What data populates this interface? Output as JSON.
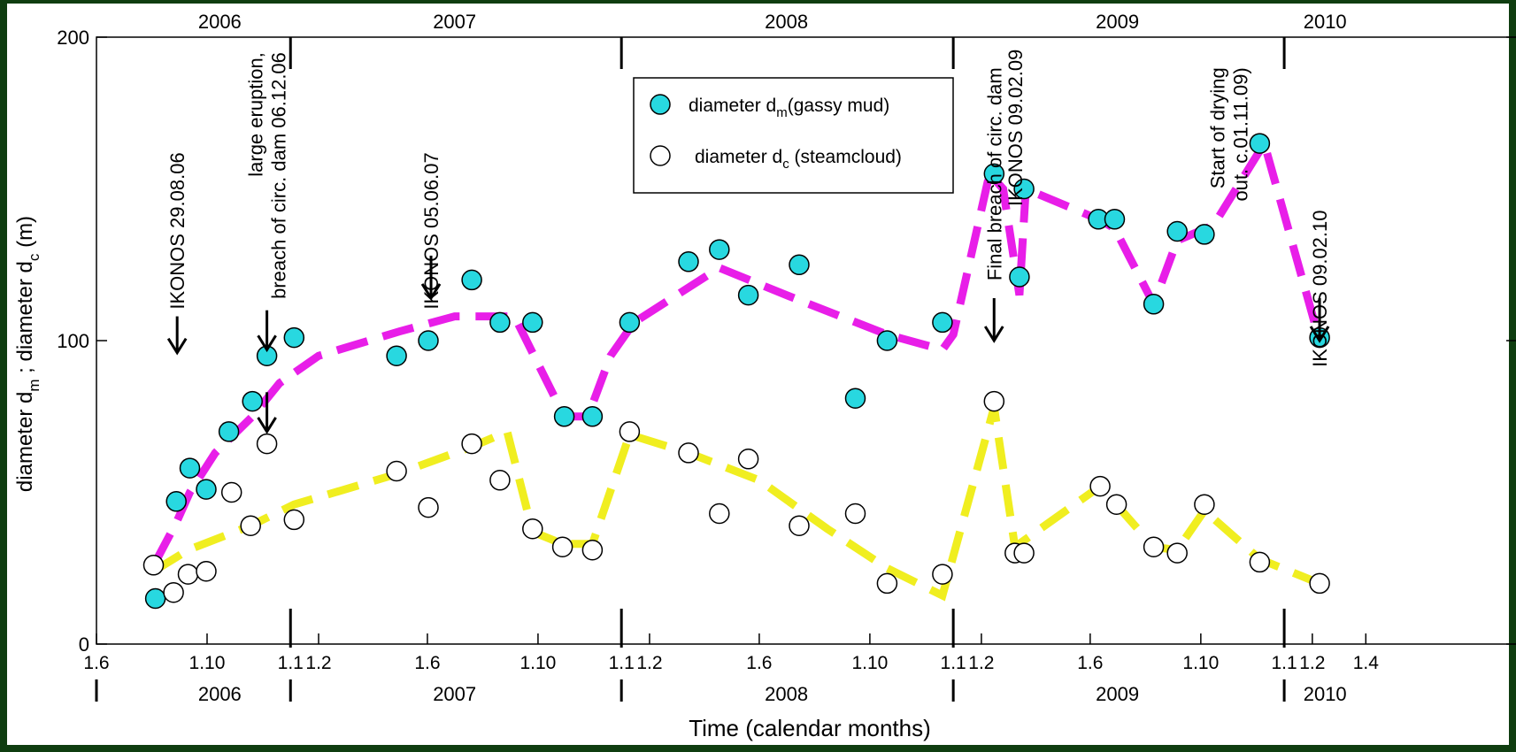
{
  "chart_data": {
    "type": "scatter",
    "xlabel": "Time (calendar months)",
    "ylabel_parts": [
      "diameter d",
      "m",
      " ; diameter d",
      "c",
      " (m)"
    ],
    "ylim": [
      0,
      200
    ],
    "y_ticks": [
      {
        "value": 0,
        "label": "0"
      },
      {
        "value": 100,
        "label": "100"
      },
      {
        "value": 200,
        "label": "200"
      }
    ],
    "x_ticks": [
      {
        "date": "2006-06-01",
        "label": "1.6"
      },
      {
        "date": "2006-10-01",
        "label": "1.10"
      },
      {
        "date": "2007-01-01",
        "label": "1.1"
      },
      {
        "date": "2007-02-01",
        "label": "1.2"
      },
      {
        "date": "2007-06-01",
        "label": "1.6"
      },
      {
        "date": "2007-10-01",
        "label": "1.10"
      },
      {
        "date": "2008-01-01",
        "label": "1.1"
      },
      {
        "date": "2008-02-01",
        "label": "1.2"
      },
      {
        "date": "2008-06-01",
        "label": "1.6"
      },
      {
        "date": "2008-10-01",
        "label": "1.10"
      },
      {
        "date": "2009-01-01",
        "label": "1.1"
      },
      {
        "date": "2009-02-01",
        "label": "1.2"
      },
      {
        "date": "2009-06-01",
        "label": "1.6"
      },
      {
        "date": "2009-10-01",
        "label": "1.10"
      },
      {
        "date": "2010-01-01",
        "label": "1.1"
      },
      {
        "date": "2010-02-01",
        "label": "1.2"
      },
      {
        "date": "2010-04-01",
        "label": "1.4"
      }
    ],
    "year_boundaries": [
      "2007-01-01",
      "2008-01-01",
      "2009-01-01",
      "2010-01-01"
    ],
    "year_labels": [
      {
        "date": "2006-10-15",
        "label": "2006"
      },
      {
        "date": "2007-07-01",
        "label": "2007"
      },
      {
        "date": "2008-07-01",
        "label": "2008"
      },
      {
        "date": "2009-07-01",
        "label": "2009"
      },
      {
        "date": "2010-02-15",
        "label": "2010"
      }
    ],
    "legend": {
      "position": "top-center",
      "entries": [
        {
          "key": "mud",
          "name_main": "diameter d",
          "name_sub": "m",
          "name_rest": "(gassy mud)",
          "marker": "filled",
          "color": "#28d8e0"
        },
        {
          "key": "steam",
          "name_main": "diameter d",
          "name_sub": "c",
          "name_rest": " (steamcloud)",
          "marker": "open",
          "color": "#ffffff"
        }
      ]
    },
    "series": [
      {
        "key": "mud",
        "color": "#28d8e0",
        "points": [
          {
            "x": "2006-08-05",
            "y": 15
          },
          {
            "x": "2006-08-28",
            "y": 47
          },
          {
            "x": "2006-09-12",
            "y": 58
          },
          {
            "x": "2006-09-30",
            "y": 51
          },
          {
            "x": "2006-10-25",
            "y": 70
          },
          {
            "x": "2006-11-20",
            "y": 80
          },
          {
            "x": "2006-12-06",
            "y": 95
          },
          {
            "x": "2007-01-05",
            "y": 101
          },
          {
            "x": "2007-04-28",
            "y": 95
          },
          {
            "x": "2007-06-02",
            "y": 100
          },
          {
            "x": "2007-07-20",
            "y": 120
          },
          {
            "x": "2007-08-20",
            "y": 106
          },
          {
            "x": "2007-09-25",
            "y": 106
          },
          {
            "x": "2007-10-30",
            "y": 75
          },
          {
            "x": "2007-11-30",
            "y": 75
          },
          {
            "x": "2008-01-10",
            "y": 106
          },
          {
            "x": "2008-03-15",
            "y": 126
          },
          {
            "x": "2008-04-18",
            "y": 130
          },
          {
            "x": "2008-05-20",
            "y": 115
          },
          {
            "x": "2008-07-15",
            "y": 125
          },
          {
            "x": "2008-09-15",
            "y": 81
          },
          {
            "x": "2008-10-20",
            "y": 100
          },
          {
            "x": "2008-12-20",
            "y": 106
          },
          {
            "x": "2009-02-15",
            "y": 155
          },
          {
            "x": "2009-03-15",
            "y": 121
          },
          {
            "x": "2009-03-20",
            "y": 150
          },
          {
            "x": "2009-06-10",
            "y": 140
          },
          {
            "x": "2009-06-28",
            "y": 140
          },
          {
            "x": "2009-08-10",
            "y": 112
          },
          {
            "x": "2009-09-05",
            "y": 136
          },
          {
            "x": "2009-10-05",
            "y": 135
          },
          {
            "x": "2009-12-05",
            "y": 165
          },
          {
            "x": "2010-02-09",
            "y": 101
          }
        ]
      },
      {
        "key": "steam",
        "color": "#ffffff",
        "points": [
          {
            "x": "2006-08-03",
            "y": 26
          },
          {
            "x": "2006-08-25",
            "y": 17
          },
          {
            "x": "2006-09-10",
            "y": 23
          },
          {
            "x": "2006-09-30",
            "y": 24
          },
          {
            "x": "2006-10-28",
            "y": 50
          },
          {
            "x": "2006-11-18",
            "y": 39
          },
          {
            "x": "2006-12-06",
            "y": 66
          },
          {
            "x": "2007-01-05",
            "y": 41
          },
          {
            "x": "2007-04-28",
            "y": 57
          },
          {
            "x": "2007-06-02",
            "y": 45
          },
          {
            "x": "2007-07-20",
            "y": 66
          },
          {
            "x": "2007-08-20",
            "y": 54
          },
          {
            "x": "2007-09-25",
            "y": 38
          },
          {
            "x": "2007-10-28",
            "y": 32
          },
          {
            "x": "2007-11-30",
            "y": 31
          },
          {
            "x": "2008-01-10",
            "y": 70
          },
          {
            "x": "2008-03-15",
            "y": 63
          },
          {
            "x": "2008-04-18",
            "y": 43
          },
          {
            "x": "2008-05-20",
            "y": 61
          },
          {
            "x": "2008-07-15",
            "y": 39
          },
          {
            "x": "2008-09-15",
            "y": 43
          },
          {
            "x": "2008-10-20",
            "y": 20
          },
          {
            "x": "2008-12-20",
            "y": 23
          },
          {
            "x": "2009-02-15",
            "y": 80
          },
          {
            "x": "2009-03-10",
            "y": 30
          },
          {
            "x": "2009-03-20",
            "y": 30
          },
          {
            "x": "2009-06-12",
            "y": 52
          },
          {
            "x": "2009-06-30",
            "y": 46
          },
          {
            "x": "2009-08-10",
            "y": 32
          },
          {
            "x": "2009-09-05",
            "y": 30
          },
          {
            "x": "2009-10-05",
            "y": 46
          },
          {
            "x": "2009-12-05",
            "y": 27
          },
          {
            "x": "2010-02-09",
            "y": 20
          }
        ]
      }
    ],
    "trend_lines": [
      {
        "key": "mud-trend",
        "color": "#e81ee8",
        "points": [
          {
            "x": "2006-08-05",
            "y": 27
          },
          {
            "x": "2006-08-28",
            "y": 40
          },
          {
            "x": "2006-09-12",
            "y": 50
          },
          {
            "x": "2006-10-10",
            "y": 63
          },
          {
            "x": "2006-11-20",
            "y": 75
          },
          {
            "x": "2006-12-20",
            "y": 86
          },
          {
            "x": "2007-02-01",
            "y": 95
          },
          {
            "x": "2007-05-01",
            "y": 103
          },
          {
            "x": "2007-07-01",
            "y": 108
          },
          {
            "x": "2007-08-15",
            "y": 108
          },
          {
            "x": "2007-09-05",
            "y": 108
          },
          {
            "x": "2007-10-30",
            "y": 75
          },
          {
            "x": "2007-11-25",
            "y": 75
          },
          {
            "x": "2007-12-20",
            "y": 95
          },
          {
            "x": "2008-01-15",
            "y": 106
          },
          {
            "x": "2008-04-18",
            "y": 124
          },
          {
            "x": "2008-07-01",
            "y": 115
          },
          {
            "x": "2008-10-20",
            "y": 102
          },
          {
            "x": "2008-12-20",
            "y": 97
          },
          {
            "x": "2009-01-01",
            "y": 102
          },
          {
            "x": "2009-02-10",
            "y": 155
          },
          {
            "x": "2009-02-25",
            "y": 150
          },
          {
            "x": "2009-03-15",
            "y": 115
          },
          {
            "x": "2009-03-22",
            "y": 150
          },
          {
            "x": "2009-06-10",
            "y": 140
          },
          {
            "x": "2009-06-28",
            "y": 137
          },
          {
            "x": "2009-08-10",
            "y": 112
          },
          {
            "x": "2009-09-05",
            "y": 133
          },
          {
            "x": "2009-10-15",
            "y": 138
          },
          {
            "x": "2009-12-10",
            "y": 165
          },
          {
            "x": "2010-02-09",
            "y": 100
          }
        ]
      },
      {
        "key": "steam-trend",
        "color": "#f0ee20",
        "points": [
          {
            "x": "2006-08-03",
            "y": 24
          },
          {
            "x": "2006-09-10",
            "y": 31
          },
          {
            "x": "2006-11-18",
            "y": 39
          },
          {
            "x": "2007-01-05",
            "y": 46
          },
          {
            "x": "2007-04-28",
            "y": 56
          },
          {
            "x": "2007-07-20",
            "y": 65
          },
          {
            "x": "2007-08-28",
            "y": 70
          },
          {
            "x": "2007-09-25",
            "y": 37
          },
          {
            "x": "2007-10-28",
            "y": 33
          },
          {
            "x": "2007-11-30",
            "y": 33
          },
          {
            "x": "2008-01-10",
            "y": 69
          },
          {
            "x": "2008-03-15",
            "y": 63
          },
          {
            "x": "2008-06-01",
            "y": 54
          },
          {
            "x": "2008-08-15",
            "y": 38
          },
          {
            "x": "2008-10-20",
            "y": 25
          },
          {
            "x": "2008-12-20",
            "y": 16
          },
          {
            "x": "2009-02-15",
            "y": 78
          },
          {
            "x": "2009-03-10",
            "y": 32
          },
          {
            "x": "2009-06-12",
            "y": 52
          },
          {
            "x": "2009-08-10",
            "y": 32
          },
          {
            "x": "2009-09-05",
            "y": 31
          },
          {
            "x": "2009-10-05",
            "y": 44
          },
          {
            "x": "2009-12-05",
            "y": 28
          },
          {
            "x": "2010-02-09",
            "y": 20
          }
        ]
      }
    ],
    "annotations": [
      {
        "lines": [
          "IKONOS 29.08.06"
        ],
        "date": "2006-08-29",
        "text_top_y": 162,
        "arrow_top_y": 108,
        "arrow_bottom_y": 96
      },
      {
        "lines": [
          "large eruption,",
          "breach of circ. dam 06.12.06"
        ],
        "date": "2006-12-06",
        "text_top_y": 195,
        "arrow_top_y": 110,
        "arrow_bottom_y": 97
      },
      {
        "lines": [],
        "date": "2006-12-06",
        "text_top_y": null,
        "arrow_top_y": 83,
        "arrow_bottom_y": 70
      },
      {
        "lines": [
          "IKONOS 05.06.07"
        ],
        "date": "2007-06-05",
        "text_top_y": 162,
        "arrow_top_y": 128,
        "arrow_bottom_y": 114
      },
      {
        "lines": [
          "Final breach of circ. dam"
        ],
        "date": "2009-02-15",
        "text_top_y": 190,
        "arrow_top_y": 114,
        "arrow_bottom_y": 100
      },
      {
        "lines": [
          "IKONOS 09.02.09"
        ],
        "date": "2009-03-10",
        "text_top_y": 196,
        "arrow_top_y": null,
        "arrow_bottom_y": null
      },
      {
        "lines": [
          "Start of drying",
          "out. c.01.11.09)"
        ],
        "date": "2009-11-01",
        "text_top_y": 190,
        "arrow_top_y": null,
        "arrow_bottom_y": null
      },
      {
        "lines": [
          "IKONOS 09.02.10"
        ],
        "date": "2010-02-09",
        "text_top_y": 143,
        "arrow_top_y": 114,
        "arrow_bottom_y": 100
      }
    ],
    "grid": false
  }
}
